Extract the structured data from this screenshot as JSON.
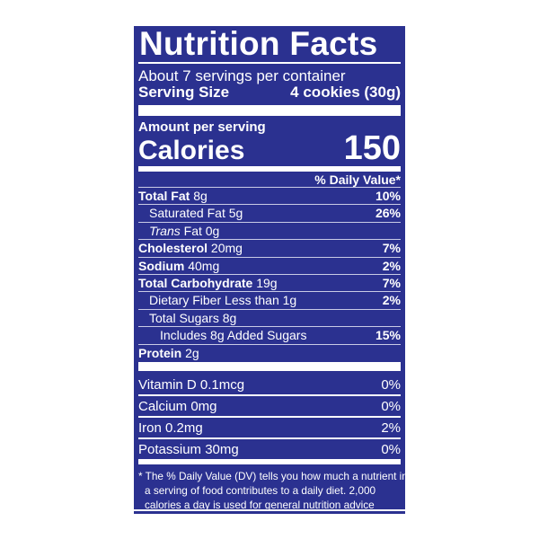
{
  "title": "Nutrition Facts",
  "servings_per_container": "About 7 servings per container",
  "serving_size": {
    "label": "Serving Size",
    "value": "4 cookies (30g)"
  },
  "amount_per_serving": "Amount per serving",
  "calories": {
    "label": "Calories",
    "value": "150"
  },
  "daily_value_header": "% Daily Value*",
  "nutrients": [
    {
      "name": "Total Fat",
      "amount": "8g",
      "dv": "10%",
      "bold": true,
      "indent": 0
    },
    {
      "name": "Saturated Fat",
      "amount": "5g",
      "dv": "26%",
      "bold": false,
      "indent": 1
    },
    {
      "name": "Trans",
      "name_suffix": "Fat",
      "amount": "0g",
      "dv": "",
      "bold": false,
      "indent": 1
    },
    {
      "name": "Cholesterol",
      "amount": "20mg",
      "dv": "7%",
      "bold": true,
      "indent": 0
    },
    {
      "name": "Sodium",
      "amount": "40mg",
      "dv": "2%",
      "bold": true,
      "indent": 0
    },
    {
      "name": "Total Carbohydrate",
      "amount": "19g",
      "dv": "7%",
      "bold": true,
      "indent": 0
    },
    {
      "name": "Dietary Fiber",
      "amount": "Less than 1g",
      "dv": "2%",
      "bold": false,
      "indent": 1
    },
    {
      "name": "Total Sugars",
      "amount": "8g",
      "dv": "",
      "bold": false,
      "indent": 1
    },
    {
      "name": "Includes 8g Added Sugars",
      "amount": "",
      "dv": "15%",
      "bold": false,
      "indent": 2
    },
    {
      "name": "Protein",
      "amount": "2g",
      "dv": "",
      "bold": true,
      "indent": 0
    }
  ],
  "vitamins": [
    {
      "name": "Vitamin D 0.1mcg",
      "dv": "0%"
    },
    {
      "name": "Calcium 0mg",
      "dv": "0%"
    },
    {
      "name": "Iron 0.2mg",
      "dv": "2%"
    },
    {
      "name": "Potassium 30mg",
      "dv": "0%"
    }
  ],
  "footnote": [
    "* The % Daily Value (DV) tells you how much a nutrient in",
    "a serving of food contributes to a daily diet. 2,000",
    "calories a day is used for general nutrition advice"
  ],
  "colors": {
    "background": "#2b3190",
    "text": "#ffffff"
  }
}
